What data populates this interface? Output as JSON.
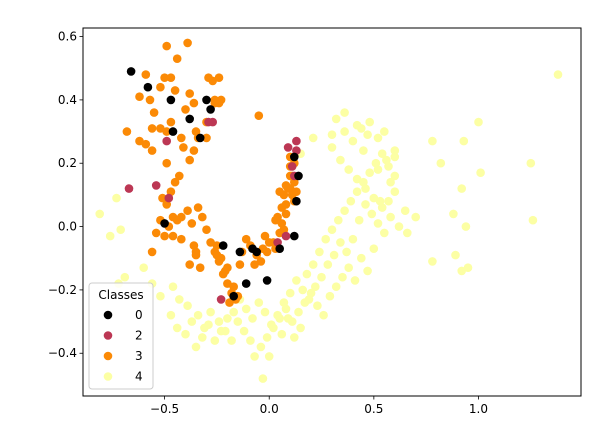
{
  "chart_data": {
    "type": "scatter",
    "title": "",
    "xlabel": "",
    "ylabel": "",
    "xlim": [
      -0.89,
      1.49
    ],
    "ylim": [
      -0.535,
      0.627
    ],
    "xticks": [
      -0.5,
      0.0,
      0.5,
      1.0
    ],
    "xtick_labels": [
      "−0.5",
      "0.0",
      "0.5",
      "1.0"
    ],
    "yticks": [
      -0.4,
      -0.2,
      0.0,
      0.2,
      0.4,
      0.6
    ],
    "ytick_labels": [
      "−0.4",
      "−0.2",
      "0.0",
      "0.2",
      "0.4",
      "0.6"
    ],
    "grid": false,
    "legend": {
      "title": "Classes",
      "placement": "lower-left"
    },
    "series": [
      {
        "name": "4",
        "color": "#fcffa4",
        "points": [
          [
            -0.81,
            0.04
          ],
          [
            -0.73,
            0.09
          ],
          [
            -0.76,
            -0.03
          ],
          [
            -0.71,
            -0.01
          ],
          [
            -0.69,
            -0.16
          ],
          [
            -0.72,
            -0.18
          ],
          [
            -0.6,
            -0.13
          ],
          [
            -0.56,
            -0.18
          ],
          [
            -0.52,
            -0.22
          ],
          [
            -0.46,
            -0.19
          ],
          [
            -0.43,
            -0.23
          ],
          [
            -0.39,
            -0.25
          ],
          [
            -0.47,
            -0.28
          ],
          [
            -0.44,
            -0.32
          ],
          [
            -0.4,
            -0.34
          ],
          [
            -0.37,
            -0.3
          ],
          [
            -0.34,
            -0.28
          ],
          [
            -0.31,
            -0.32
          ],
          [
            -0.28,
            -0.27
          ],
          [
            -0.24,
            -0.3
          ],
          [
            -0.21,
            -0.33
          ],
          [
            -0.18,
            -0.36
          ],
          [
            -0.15,
            -0.3
          ],
          [
            -0.12,
            -0.33
          ],
          [
            -0.09,
            -0.36
          ],
          [
            -0.07,
            -0.41
          ],
          [
            -0.04,
            -0.38
          ],
          [
            -0.01,
            -0.35
          ],
          [
            0.02,
            -0.32
          ],
          [
            0.05,
            -0.29
          ],
          [
            0.08,
            -0.26
          ],
          [
            0.11,
            -0.3
          ],
          [
            0.14,
            -0.27
          ],
          [
            0.17,
            -0.24
          ],
          [
            0.2,
            -0.21
          ],
          [
            0.23,
            -0.25
          ],
          [
            0.26,
            -0.28
          ],
          [
            0.29,
            -0.22
          ],
          [
            0.32,
            -0.19
          ],
          [
            0.35,
            -0.16
          ],
          [
            0.38,
            -0.13
          ],
          [
            0.41,
            -0.17
          ],
          [
            0.44,
            -0.1
          ],
          [
            0.47,
            -0.14
          ],
          [
            0.5,
            -0.07
          ],
          [
            0.18,
            -0.15
          ],
          [
            0.21,
            -0.12
          ],
          [
            0.24,
            -0.08
          ],
          [
            0.27,
            -0.04
          ],
          [
            0.3,
            -0.01
          ],
          [
            0.33,
            0.02
          ],
          [
            0.36,
            0.05
          ],
          [
            0.39,
            0.08
          ],
          [
            0.42,
            0.11
          ],
          [
            0.45,
            0.14
          ],
          [
            0.48,
            0.17
          ],
          [
            0.51,
            0.2
          ],
          [
            0.54,
            0.23
          ],
          [
            0.57,
            0.19
          ],
          [
            0.6,
            0.16
          ],
          [
            0.36,
            0.3
          ],
          [
            0.4,
            0.27
          ],
          [
            0.44,
            0.31
          ],
          [
            0.48,
            0.33
          ],
          [
            0.52,
            0.28
          ],
          [
            0.3,
            0.25
          ],
          [
            0.34,
            0.21
          ],
          [
            0.38,
            0.18
          ],
          [
            0.42,
            0.15
          ],
          [
            0.46,
            0.12
          ],
          [
            0.5,
            0.09
          ],
          [
            0.54,
            0.06
          ],
          [
            0.58,
            0.03
          ],
          [
            0.62,
            0.0
          ],
          [
            0.55,
            -0.02
          ],
          [
            0.52,
            0.01
          ],
          [
            0.49,
            0.04
          ],
          [
            0.46,
            0.07
          ],
          [
            0.43,
            0.02
          ],
          [
            0.4,
            -0.04
          ],
          [
            0.37,
            -0.08
          ],
          [
            0.34,
            -0.05
          ],
          [
            0.31,
            -0.09
          ],
          [
            0.28,
            -0.12
          ],
          [
            0.25,
            -0.16
          ],
          [
            0.22,
            -0.19
          ],
          [
            0.19,
            -0.23
          ],
          [
            0.16,
            -0.2
          ],
          [
            0.13,
            -0.17
          ],
          [
            0.1,
            -0.21
          ],
          [
            0.07,
            -0.24
          ],
          [
            0.04,
            -0.28
          ],
          [
            0.01,
            -0.31
          ],
          [
            -0.02,
            -0.27
          ],
          [
            -0.05,
            -0.24
          ],
          [
            -0.08,
            -0.29
          ],
          [
            -0.11,
            -0.26
          ],
          [
            -0.14,
            -0.23
          ],
          [
            -0.17,
            -0.27
          ],
          [
            -0.2,
            -0.29
          ],
          [
            -0.23,
            -0.33
          ],
          [
            -0.26,
            -0.36
          ],
          [
            -0.29,
            -0.31
          ],
          [
            -0.32,
            -0.35
          ],
          [
            -0.35,
            -0.38
          ],
          [
            0.0,
            -0.41
          ],
          [
            -0.03,
            -0.48
          ],
          [
            0.06,
            -0.34
          ],
          [
            0.12,
            -0.35
          ],
          [
            0.15,
            -0.32
          ],
          [
            0.09,
            -0.29
          ],
          [
            0.78,
            0.27
          ],
          [
            0.82,
            0.2
          ],
          [
            0.93,
            0.27
          ],
          [
            1.0,
            0.33
          ],
          [
            0.92,
            0.12
          ],
          [
            1.01,
            0.17
          ],
          [
            0.88,
            0.04
          ],
          [
            0.94,
            0.0
          ],
          [
            0.89,
            -0.09
          ],
          [
            0.92,
            -0.14
          ],
          [
            0.78,
            -0.11
          ],
          [
            0.95,
            -0.13
          ],
          [
            1.25,
            0.2
          ],
          [
            1.26,
            0.02
          ],
          [
            1.38,
            0.48
          ],
          [
            0.6,
            0.24
          ],
          [
            0.56,
            0.21
          ],
          [
            0.53,
            0.08
          ],
          [
            0.65,
            0.05
          ],
          [
            0.7,
            0.03
          ],
          [
            0.66,
            -0.02
          ],
          [
            0.58,
            0.14
          ],
          [
            0.52,
            0.18
          ],
          [
            0.45,
            0.24
          ],
          [
            0.3,
            0.29
          ],
          [
            0.32,
            0.34
          ],
          [
            0.36,
            0.36
          ],
          [
            0.42,
            0.32
          ],
          [
            0.47,
            0.29
          ],
          [
            0.55,
            0.3
          ],
          [
            0.6,
            0.22
          ],
          [
            0.21,
            0.28
          ],
          [
            0.15,
            0.23
          ],
          [
            0.12,
            0.2
          ],
          [
            0.6,
            0.11
          ],
          [
            0.57,
            0.08
          ]
        ]
      },
      {
        "name": "3",
        "color": "#fb8a06",
        "points": [
          [
            -0.49,
            0.57
          ],
          [
            -0.39,
            0.58
          ],
          [
            -0.44,
            0.53
          ],
          [
            -0.59,
            0.48
          ],
          [
            -0.5,
            0.47
          ],
          [
            -0.47,
            0.47
          ],
          [
            -0.52,
            0.44
          ],
          [
            -0.45,
            0.43
          ],
          [
            -0.57,
            0.4
          ],
          [
            -0.55,
            0.36
          ],
          [
            -0.52,
            0.31
          ],
          [
            -0.56,
            0.31
          ],
          [
            -0.68,
            0.3
          ],
          [
            -0.62,
            0.27
          ],
          [
            -0.59,
            0.26
          ],
          [
            -0.56,
            0.24
          ],
          [
            -0.49,
            0.2
          ],
          [
            -0.49,
            0.3
          ],
          [
            -0.47,
            0.33
          ],
          [
            -0.4,
            0.37
          ],
          [
            -0.38,
            0.42
          ],
          [
            -0.36,
            0.39
          ],
          [
            -0.35,
            0.3
          ],
          [
            -0.34,
            0.28
          ],
          [
            -0.29,
            0.47
          ],
          [
            -0.27,
            0.46
          ],
          [
            -0.24,
            0.47
          ],
          [
            -0.26,
            0.39
          ],
          [
            -0.24,
            0.39
          ],
          [
            -0.23,
            0.4
          ],
          [
            -0.26,
            0.4
          ],
          [
            -0.3,
            0.33
          ],
          [
            -0.3,
            0.28
          ],
          [
            -0.41,
            0.25
          ],
          [
            -0.42,
            0.28
          ],
          [
            -0.45,
            0.14
          ],
          [
            -0.43,
            0.16
          ],
          [
            -0.47,
            0.11
          ],
          [
            -0.51,
            0.09
          ],
          [
            -0.49,
            0.07
          ],
          [
            -0.46,
            0.03
          ],
          [
            -0.52,
            0.02
          ],
          [
            -0.48,
            0.0
          ],
          [
            -0.44,
            0.02
          ],
          [
            -0.42,
            0.03
          ],
          [
            -0.39,
            0.05
          ],
          [
            -0.37,
            0.01
          ],
          [
            -0.34,
            0.06
          ],
          [
            -0.32,
            0.03
          ],
          [
            -0.3,
            -0.01
          ],
          [
            -0.28,
            -0.05
          ],
          [
            -0.26,
            -0.08
          ],
          [
            -0.24,
            -0.11
          ],
          [
            -0.22,
            -0.15
          ],
          [
            -0.2,
            -0.18
          ],
          [
            -0.18,
            -0.21
          ],
          [
            -0.16,
            -0.23
          ],
          [
            -0.2,
            -0.13
          ],
          [
            -0.23,
            -0.1
          ],
          [
            -0.25,
            -0.06
          ],
          [
            -0.36,
            -0.06
          ],
          [
            -0.35,
            -0.09
          ],
          [
            -0.33,
            -0.13
          ],
          [
            -0.38,
            -0.12
          ],
          [
            -0.54,
            -0.02
          ],
          [
            -0.56,
            -0.08
          ],
          [
            -0.5,
            -0.03
          ],
          [
            -0.46,
            -0.03
          ],
          [
            -0.42,
            -0.04
          ],
          [
            -0.35,
            -0.08
          ],
          [
            -0.13,
            -0.08
          ],
          [
            -0.11,
            -0.04
          ],
          [
            -0.09,
            -0.06
          ],
          [
            -0.06,
            -0.09
          ],
          [
            -0.03,
            -0.07
          ],
          [
            0.0,
            -0.05
          ],
          [
            0.03,
            -0.07
          ],
          [
            0.05,
            -0.02
          ],
          [
            0.04,
            0.03
          ],
          [
            0.06,
            0.06
          ],
          [
            0.07,
            0.1
          ],
          [
            0.08,
            0.13
          ],
          [
            0.1,
            0.12
          ],
          [
            0.11,
            0.1
          ],
          [
            0.12,
            0.08
          ],
          [
            0.1,
            0.16
          ],
          [
            0.12,
            0.14
          ],
          [
            0.1,
            0.19
          ],
          [
            0.08,
            0.04
          ],
          [
            0.06,
            0.01
          ],
          [
            0.03,
            0.02
          ],
          [
            -0.02,
            -0.03
          ],
          [
            0.05,
            0.11
          ],
          [
            0.08,
            0.07
          ],
          [
            0.1,
            0.22
          ],
          [
            0.12,
            0.2
          ],
          [
            0.11,
            0.16
          ],
          [
            0.09,
            0.12
          ],
          [
            0.13,
            0.11
          ],
          [
            0.07,
            -0.01
          ],
          [
            0.02,
            -0.05
          ],
          [
            -0.01,
            -0.08
          ],
          [
            -0.04,
            -0.11
          ],
          [
            -0.07,
            -0.12
          ],
          [
            -0.14,
            -0.12
          ],
          [
            -0.25,
            -0.09
          ],
          [
            -0.21,
            -0.14
          ],
          [
            -0.17,
            -0.19
          ],
          [
            -0.15,
            -0.22
          ],
          [
            -0.19,
            -0.24
          ],
          [
            -0.05,
            0.35
          ],
          [
            -0.38,
            0.21
          ],
          [
            -0.36,
            0.24
          ],
          [
            -0.62,
            0.41
          ]
        ]
      },
      {
        "name": "2",
        "color": "#bc3754",
        "points": [
          [
            -0.67,
            0.12
          ],
          [
            -0.54,
            0.13
          ],
          [
            -0.48,
            0.09
          ],
          [
            -0.49,
            0.27
          ],
          [
            -0.27,
            0.33
          ],
          [
            -0.29,
            0.33
          ],
          [
            -0.23,
            -0.23
          ],
          [
            0.09,
            0.25
          ],
          [
            0.13,
            0.27
          ],
          [
            0.13,
            0.24
          ],
          [
            0.11,
            0.19
          ],
          [
            0.12,
            0.16
          ],
          [
            0.08,
            -0.03
          ],
          [
            0.04,
            -0.05
          ]
        ]
      },
      {
        "name": "0",
        "color": "#000000",
        "points": [
          [
            -0.66,
            0.49
          ],
          [
            -0.58,
            0.44
          ],
          [
            -0.47,
            0.4
          ],
          [
            -0.3,
            0.4
          ],
          [
            -0.28,
            0.37
          ],
          [
            -0.33,
            0.28
          ],
          [
            -0.38,
            0.34
          ],
          [
            -0.46,
            0.3
          ],
          [
            -0.5,
            0.01
          ],
          [
            -0.22,
            -0.06
          ],
          [
            -0.17,
            -0.22
          ],
          [
            -0.14,
            -0.08
          ],
          [
            -0.11,
            -0.18
          ],
          [
            -0.06,
            -0.08
          ],
          [
            -0.01,
            -0.17
          ],
          [
            0.05,
            -0.07
          ],
          [
            0.12,
            -0.03
          ],
          [
            0.13,
            0.08
          ],
          [
            0.12,
            0.22
          ],
          [
            0.14,
            0.16
          ],
          [
            -0.08,
            -0.07
          ]
        ]
      }
    ],
    "legend_order": [
      "0",
      "2",
      "3",
      "4"
    ]
  }
}
